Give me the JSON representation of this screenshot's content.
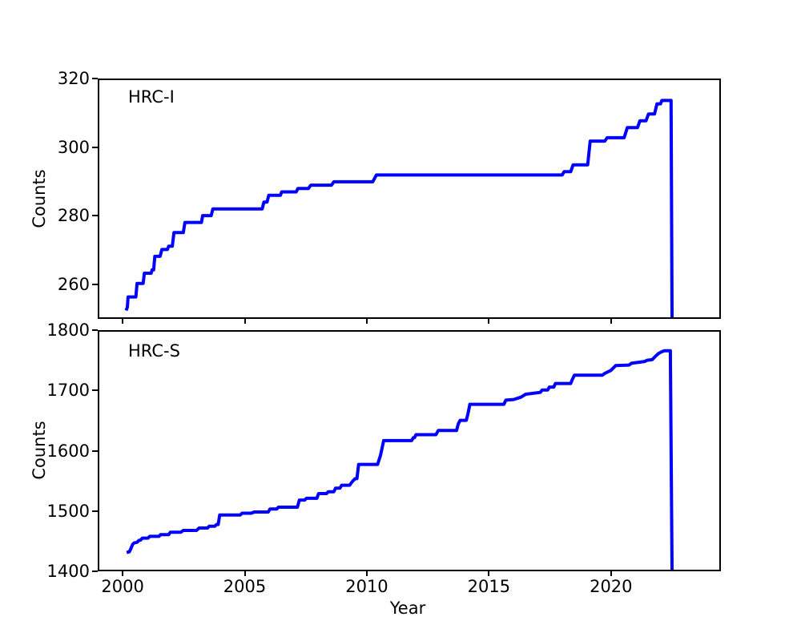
{
  "figure": {
    "xlabel": "Year",
    "line_color": "#0000ff",
    "axis_color": "#000000",
    "background_color": "#ffffff"
  },
  "chart_data": [
    {
      "type": "line",
      "panel_label": "HRC-I",
      "ylabel": "Counts",
      "xlabel": "",
      "legend": "none",
      "grid": false,
      "xlim": [
        1998.98,
        2024.5
      ],
      "ylim": [
        250,
        320
      ],
      "xticks": [
        2000,
        2005,
        2010,
        2015,
        2020
      ],
      "xticklabels": [
        "",
        "",
        "",
        "",
        ""
      ],
      "yticks": [
        260,
        280,
        300,
        320
      ],
      "yticklabels": [
        "260",
        "280",
        "300",
        "320"
      ],
      "line_color": "#0000ff",
      "points": [
        [
          2000.15,
          252
        ],
        [
          2000.2,
          253
        ],
        [
          2000.23,
          256
        ],
        [
          2000.55,
          256
        ],
        [
          2000.6,
          260
        ],
        [
          2000.85,
          260
        ],
        [
          2000.9,
          263
        ],
        [
          2001.18,
          263
        ],
        [
          2001.22,
          264
        ],
        [
          2001.28,
          264
        ],
        [
          2001.33,
          268
        ],
        [
          2001.55,
          268
        ],
        [
          2001.62,
          270
        ],
        [
          2001.85,
          270
        ],
        [
          2001.9,
          271
        ],
        [
          2002.05,
          271
        ],
        [
          2002.12,
          275
        ],
        [
          2002.5,
          275
        ],
        [
          2002.57,
          278
        ],
        [
          2003.25,
          278
        ],
        [
          2003.3,
          280
        ],
        [
          2003.65,
          280
        ],
        [
          2003.72,
          282
        ],
        [
          2005.75,
          282
        ],
        [
          2005.82,
          284
        ],
        [
          2005.95,
          284
        ],
        [
          2006.02,
          286
        ],
        [
          2006.5,
          286
        ],
        [
          2006.55,
          287
        ],
        [
          2007.15,
          287
        ],
        [
          2007.22,
          288
        ],
        [
          2007.65,
          288
        ],
        [
          2007.75,
          289
        ],
        [
          2008.6,
          289
        ],
        [
          2008.7,
          290
        ],
        [
          2010.3,
          290
        ],
        [
          2010.45,
          292
        ],
        [
          2018.1,
          292
        ],
        [
          2018.18,
          293
        ],
        [
          2018.45,
          293
        ],
        [
          2018.55,
          295
        ],
        [
          2019.15,
          295
        ],
        [
          2019.25,
          302
        ],
        [
          2019.85,
          302
        ],
        [
          2019.95,
          303
        ],
        [
          2020.65,
          303
        ],
        [
          2020.78,
          306
        ],
        [
          2021.2,
          306
        ],
        [
          2021.3,
          308
        ],
        [
          2021.55,
          308
        ],
        [
          2021.65,
          310
        ],
        [
          2021.9,
          310
        ],
        [
          2022.0,
          313
        ],
        [
          2022.15,
          313
        ],
        [
          2022.2,
          314
        ],
        [
          2022.58,
          314
        ],
        [
          2022.62,
          250
        ]
      ]
    },
    {
      "type": "line",
      "panel_label": "HRC-S",
      "ylabel": "Counts",
      "xlabel": "Year",
      "legend": "none",
      "grid": false,
      "xlim": [
        1998.98,
        2024.5
      ],
      "ylim": [
        1400,
        1800
      ],
      "xticks": [
        2000,
        2005,
        2010,
        2015,
        2020
      ],
      "xticklabels": [
        "2000",
        "2005",
        "2010",
        "2015",
        "2020"
      ],
      "yticks": [
        1400,
        1500,
        1600,
        1700,
        1800
      ],
      "yticklabels": [
        "1400",
        "1500",
        "1600",
        "1700",
        "1800"
      ],
      "line_color": "#0000ff",
      "points": [
        [
          2000.17,
          1429
        ],
        [
          2000.28,
          1430
        ],
        [
          2000.33,
          1434
        ],
        [
          2000.42,
          1443
        ],
        [
          2000.48,
          1445
        ],
        [
          2000.6,
          1446
        ],
        [
          2000.67,
          1449
        ],
        [
          2000.75,
          1450
        ],
        [
          2000.82,
          1453
        ],
        [
          2001.05,
          1453
        ],
        [
          2001.12,
          1456
        ],
        [
          2001.5,
          1456
        ],
        [
          2001.57,
          1459
        ],
        [
          2001.9,
          1459
        ],
        [
          2001.97,
          1463
        ],
        [
          2002.4,
          1463
        ],
        [
          2002.5,
          1466
        ],
        [
          2003.05,
          1466
        ],
        [
          2003.15,
          1470
        ],
        [
          2003.5,
          1470
        ],
        [
          2003.57,
          1473
        ],
        [
          2003.8,
          1473
        ],
        [
          2003.87,
          1476
        ],
        [
          2003.94,
          1476
        ],
        [
          2004.0,
          1492
        ],
        [
          2004.85,
          1492
        ],
        [
          2004.92,
          1495
        ],
        [
          2005.3,
          1495
        ],
        [
          2005.42,
          1497
        ],
        [
          2006.0,
          1497
        ],
        [
          2006.07,
          1502
        ],
        [
          2006.35,
          1502
        ],
        [
          2006.42,
          1505
        ],
        [
          2007.2,
          1505
        ],
        [
          2007.28,
          1517
        ],
        [
          2007.5,
          1517
        ],
        [
          2007.57,
          1520
        ],
        [
          2008.0,
          1520
        ],
        [
          2008.07,
          1528
        ],
        [
          2008.4,
          1528
        ],
        [
          2008.47,
          1531
        ],
        [
          2008.7,
          1531
        ],
        [
          2008.77,
          1537
        ],
        [
          2008.95,
          1537
        ],
        [
          2009.02,
          1542
        ],
        [
          2009.35,
          1542
        ],
        [
          2009.42,
          1546
        ],
        [
          2009.5,
          1550
        ],
        [
          2009.58,
          1553
        ],
        [
          2009.65,
          1553
        ],
        [
          2009.72,
          1577
        ],
        [
          2010.5,
          1577
        ],
        [
          2010.62,
          1592
        ],
        [
          2010.75,
          1617
        ],
        [
          2011.9,
          1617
        ],
        [
          2011.97,
          1622
        ],
        [
          2012.02,
          1622
        ],
        [
          2012.08,
          1627
        ],
        [
          2012.9,
          1627
        ],
        [
          2013.0,
          1634
        ],
        [
          2013.75,
          1634
        ],
        [
          2013.82,
          1645
        ],
        [
          2013.9,
          1651
        ],
        [
          2014.15,
          1651
        ],
        [
          2014.22,
          1662
        ],
        [
          2014.3,
          1678
        ],
        [
          2015.7,
          1678
        ],
        [
          2015.78,
          1685
        ],
        [
          2016.1,
          1686
        ],
        [
          2016.4,
          1690
        ],
        [
          2016.6,
          1695
        ],
        [
          2017.2,
          1698
        ],
        [
          2017.27,
          1702
        ],
        [
          2017.5,
          1702
        ],
        [
          2017.57,
          1707
        ],
        [
          2017.75,
          1707
        ],
        [
          2017.82,
          1713
        ],
        [
          2018.45,
          1713
        ],
        [
          2018.52,
          1720
        ],
        [
          2018.6,
          1727
        ],
        [
          2019.75,
          1727
        ],
        [
          2019.85,
          1730
        ],
        [
          2020.1,
          1735
        ],
        [
          2020.3,
          1743
        ],
        [
          2020.85,
          1744
        ],
        [
          2020.95,
          1747
        ],
        [
          2021.5,
          1750
        ],
        [
          2021.6,
          1752
        ],
        [
          2021.8,
          1753
        ],
        [
          2021.92,
          1758
        ],
        [
          2022.05,
          1763
        ],
        [
          2022.18,
          1766
        ],
        [
          2022.3,
          1768
        ],
        [
          2022.55,
          1768
        ],
        [
          2022.62,
          1400
        ]
      ]
    }
  ]
}
